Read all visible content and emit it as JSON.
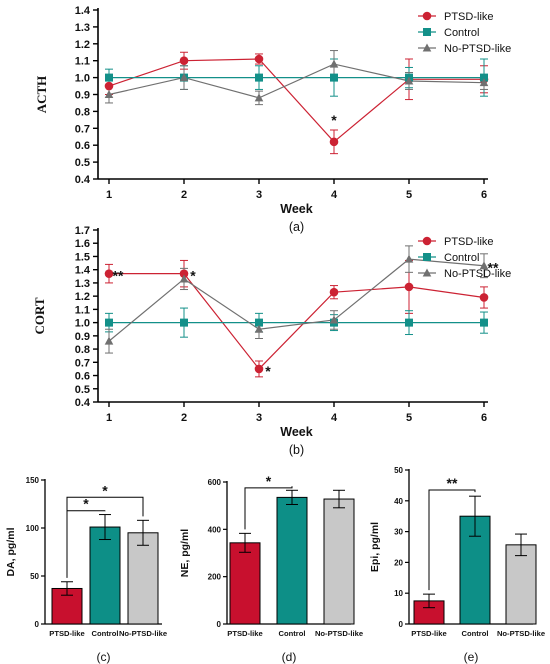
{
  "colors": {
    "ptsd": "#cc2233",
    "control": "#139089",
    "noptsd": "#707070",
    "bar_ptsd": "#c8102e",
    "bar_control": "#0d8f87",
    "bar_noptsd": "#c8c8c8"
  },
  "chart_data": [
    {
      "id": "a",
      "type": "line",
      "panel_label": "(a)",
      "xlabel": "Week",
      "ylabel": "ACTH",
      "x": [
        1,
        2,
        3,
        4,
        5,
        6
      ],
      "xlim": [
        1,
        6
      ],
      "ylim": [
        0.4,
        1.4
      ],
      "yticks": [
        0.4,
        0.5,
        0.6,
        0.7,
        0.8,
        0.9,
        1.0,
        1.1,
        1.2,
        1.3,
        1.4
      ],
      "ytick_labels": [
        "0.4",
        "0.5",
        "0.6",
        "0.7",
        "0.8",
        "0.9",
        "1.0",
        "1.1",
        "1.2",
        "1.3",
        "1.4"
      ],
      "legend_position": "top-right",
      "series": [
        {
          "name": "PTSD-like",
          "marker": "circle",
          "values": [
            0.95,
            1.1,
            1.11,
            0.62,
            0.99,
            0.99
          ],
          "errors": [
            0.05,
            0.05,
            0.03,
            0.07,
            0.12,
            0.08
          ]
        },
        {
          "name": "Control",
          "marker": "square",
          "values": [
            1.0,
            1.0,
            1.0,
            1.0,
            1.0,
            1.0
          ],
          "errors": [
            0.05,
            0.07,
            0.07,
            0.11,
            0.06,
            0.11
          ]
        },
        {
          "name": "No-PTSD-like",
          "marker": "triangle",
          "values": [
            0.9,
            1.0,
            0.88,
            1.08,
            0.98,
            0.97
          ],
          "errors": [
            0.05,
            0.07,
            0.04,
            0.08,
            0.05,
            0.04
          ]
        }
      ],
      "annotations": [
        {
          "x": 4,
          "y": 0.72,
          "text": "*"
        }
      ]
    },
    {
      "id": "b",
      "type": "line",
      "panel_label": "(b)",
      "xlabel": "Week",
      "ylabel": "CORT",
      "x": [
        1,
        2,
        3,
        4,
        5,
        6
      ],
      "xlim": [
        1,
        6
      ],
      "ylim": [
        0.4,
        1.7
      ],
      "yticks": [
        0.4,
        0.5,
        0.6,
        0.7,
        0.8,
        0.9,
        1.0,
        1.1,
        1.2,
        1.3,
        1.4,
        1.5,
        1.6,
        1.7
      ],
      "ytick_labels": [
        "0.4",
        "0.5",
        "0.6",
        "0.7",
        "0.8",
        "0.9",
        "1.0",
        "1.1",
        "1.2",
        "1.3",
        "1.4",
        "1.5",
        "1.6",
        "1.7"
      ],
      "legend_position": "right",
      "series": [
        {
          "name": "PTSD-like",
          "marker": "circle",
          "values": [
            1.37,
            1.37,
            0.65,
            1.23,
            1.27,
            1.19
          ],
          "errors": [
            0.07,
            0.1,
            0.06,
            0.05,
            0.2,
            0.08
          ]
        },
        {
          "name": "Control",
          "marker": "square",
          "values": [
            1.0,
            1.0,
            1.0,
            1.0,
            1.0,
            1.0
          ],
          "errors": [
            0.07,
            0.11,
            0.07,
            0.06,
            0.09,
            0.08
          ]
        },
        {
          "name": "No-PTSD-like",
          "marker": "triangle",
          "values": [
            0.86,
            1.33,
            0.95,
            1.02,
            1.48,
            1.43
          ],
          "errors": [
            0.09,
            0.08,
            0.07,
            0.07,
            0.1,
            0.09
          ]
        }
      ],
      "annotations": [
        {
          "x": 1,
          "y": 1.37,
          "text": "**"
        },
        {
          "x": 2,
          "y": 1.37,
          "text": "*"
        },
        {
          "x": 3,
          "y": 0.65,
          "text": "*"
        },
        {
          "x": 6,
          "y": 1.43,
          "text": "**"
        }
      ]
    },
    {
      "id": "c",
      "type": "bar",
      "panel_label": "(c)",
      "ylabel": "DA, pg/ml",
      "categories": [
        "PTSD-like",
        "Control",
        "No-PTSD-like"
      ],
      "values": [
        37,
        101,
        95
      ],
      "errors": [
        7,
        13,
        13
      ],
      "ylim": [
        0,
        150
      ],
      "yticks": [
        0,
        50,
        100,
        150
      ],
      "ytick_labels": [
        "0",
        "50",
        "100",
        "150"
      ],
      "significance": [
        {
          "from": 0,
          "to": 1,
          "y": 118,
          "text": "*"
        },
        {
          "from": 0,
          "to": 2,
          "y": 132,
          "text": "*"
        }
      ]
    },
    {
      "id": "d",
      "type": "bar",
      "panel_label": "(d)",
      "ylabel": "NE, pg/ml",
      "categories": [
        "PTSD-like",
        "Control",
        "No-PTSD-like"
      ],
      "values": [
        343,
        535,
        528
      ],
      "errors": [
        40,
        30,
        37
      ],
      "ylim": [
        0,
        600
      ],
      "yticks": [
        0,
        200,
        400,
        600
      ],
      "ytick_labels": [
        "0",
        "200",
        "400",
        "600"
      ],
      "significance": [
        {
          "from": 0,
          "to": 1,
          "y": 575,
          "text": "*"
        }
      ]
    },
    {
      "id": "e",
      "type": "bar",
      "panel_label": "(e)",
      "ylabel": "Epi, pg/ml",
      "categories": [
        "PTSD-like",
        "Control",
        "No-PTSD-like"
      ],
      "values": [
        7.5,
        35,
        25.7
      ],
      "errors": [
        2.2,
        6.5,
        3.5
      ],
      "ylim": [
        0,
        50
      ],
      "yticks": [
        0,
        10,
        20,
        30,
        40,
        50
      ],
      "ytick_labels": [
        "0",
        "10",
        "20",
        "30",
        "40",
        "50"
      ],
      "significance": [
        {
          "from": 0,
          "to": 1,
          "y": 43.5,
          "text": "**"
        }
      ]
    }
  ]
}
